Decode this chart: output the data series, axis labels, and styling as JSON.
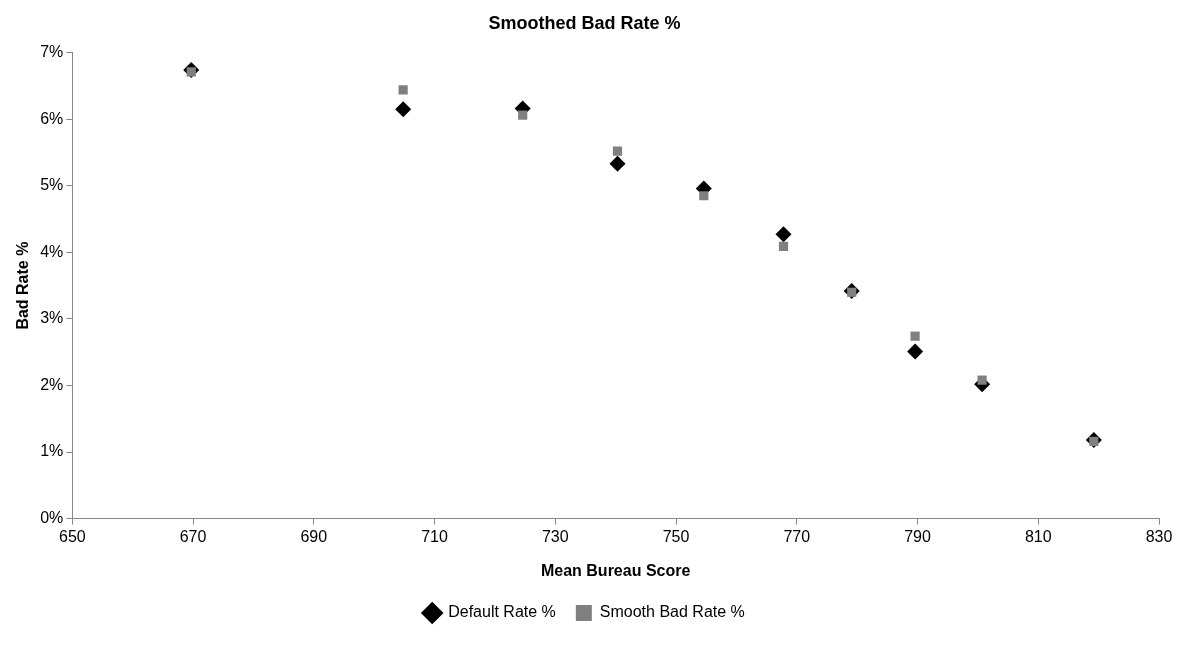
{
  "chart_data": {
    "type": "scatter",
    "title": "Smoothed Bad Rate %",
    "xlabel": "Mean Bureau Score",
    "ylabel": "Bad Rate %",
    "x": [
      669.7,
      704.8,
      724.6,
      740.3,
      754.6,
      767.8,
      779.1,
      789.6,
      800.7,
      819.2
    ],
    "series": [
      {
        "name": "Default Rate %",
        "color": "#000000",
        "marker": "diamond",
        "values": [
          6.74,
          6.15,
          6.16,
          5.33,
          4.96,
          4.27,
          3.42,
          2.51,
          2.02,
          1.18
        ]
      },
      {
        "name": "Smooth Bad Rate %",
        "color": "#808080",
        "marker": "square",
        "values": [
          6.71,
          6.44,
          6.06,
          5.52,
          4.85,
          4.09,
          3.4,
          2.74,
          2.08,
          1.16
        ]
      }
    ],
    "xlim": [
      650,
      830
    ],
    "xticks": [
      650,
      670,
      690,
      710,
      730,
      750,
      770,
      790,
      810,
      830
    ],
    "ylim": [
      0,
      7
    ],
    "yticks": [
      {
        "value": 0,
        "label": "0%"
      },
      {
        "value": 1,
        "label": "1%"
      },
      {
        "value": 2,
        "label": "2%"
      },
      {
        "value": 3,
        "label": "3%"
      },
      {
        "value": 4,
        "label": "4%"
      },
      {
        "value": 5,
        "label": "5%"
      },
      {
        "value": 6,
        "label": "6%"
      },
      {
        "value": 7,
        "label": "7%"
      }
    ],
    "grid": false,
    "legend": "bottom"
  }
}
